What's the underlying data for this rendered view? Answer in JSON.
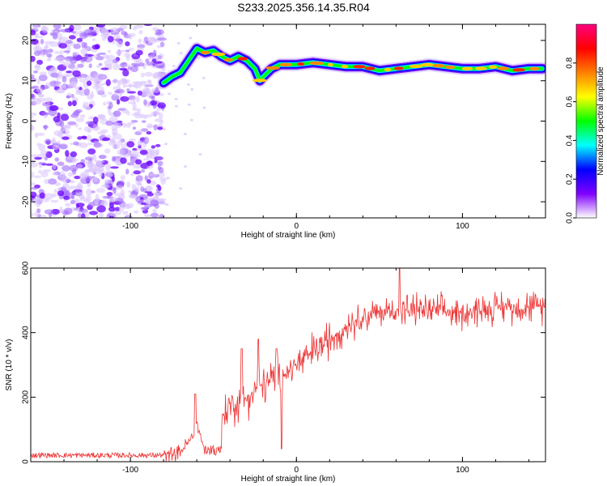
{
  "title": "S233.2025.356.14.35.R04",
  "chart_data": [
    {
      "type": "heatmap",
      "name": "spectrogram",
      "xlabel": "Height of straight line (km)",
      "ylabel": "Frequency (Hz)",
      "xlim": [
        -160,
        150
      ],
      "ylim": [
        -24,
        24
      ],
      "xticks": [
        -100,
        0,
        100
      ],
      "yticks": [
        -20,
        -10,
        0,
        10,
        20
      ],
      "noise_region_x": [
        -160,
        -80
      ],
      "ridge": {
        "x": [
          -80,
          -75,
          -70,
          -65,
          -60,
          -55,
          -50,
          -45,
          -40,
          -35,
          -30,
          -25,
          -22,
          -20,
          -15,
          -10,
          -5,
          0,
          10,
          20,
          30,
          40,
          50,
          60,
          70,
          80,
          90,
          100,
          110,
          120,
          130,
          140,
          148
        ],
        "y": [
          9.5,
          11,
          12,
          15,
          18,
          17,
          17.5,
          16,
          15,
          16,
          15,
          13,
          10,
          11,
          13,
          14,
          14,
          14,
          14.5,
          14,
          13.5,
          13.5,
          12.5,
          13,
          13.5,
          14,
          13.5,
          13,
          13,
          13.5,
          12.5,
          13,
          13
        ]
      },
      "colorbar": {
        "label": "Normalized spectral amplitude",
        "range": [
          0.0,
          1.0
        ],
        "ticks": [
          "0.0",
          "0.2",
          "0.4",
          "0.6",
          "0.8"
        ],
        "colors": [
          "#ffffff",
          "#7f00ff",
          "#0000ff",
          "#00ffff",
          "#00ff00",
          "#ffff00",
          "#ff8000",
          "#ff0000",
          "#ff0080"
        ]
      }
    },
    {
      "type": "line",
      "name": "snr",
      "xlabel": "Height of straight line (km)",
      "ylabel": "SNR (10 * v/v)",
      "xlim": [
        -160,
        150
      ],
      "ylim": [
        0,
        600
      ],
      "xticks": [
        -100,
        0,
        100
      ],
      "yticks": [
        0,
        200,
        400,
        600
      ],
      "color": "#ee3333",
      "trend": {
        "x": [
          -160,
          -80,
          -70,
          -62,
          -60,
          -55,
          -50,
          -45,
          -40,
          -30,
          -20,
          -10,
          0,
          10,
          20,
          30,
          40,
          60,
          80,
          100,
          120,
          150
        ],
        "y": [
          20,
          20,
          30,
          80,
          120,
          30,
          25,
          140,
          170,
          200,
          240,
          260,
          300,
          340,
          380,
          420,
          450,
          470,
          470,
          460,
          480,
          480
        ]
      },
      "spikes": [
        {
          "x": -61,
          "y": 210
        },
        {
          "x": -33,
          "y": 350
        },
        {
          "x": -23,
          "y": 380
        },
        {
          "x": -12,
          "y": 350
        },
        {
          "x": -9,
          "y": 40
        },
        {
          "x": 62,
          "y": 600
        }
      ]
    }
  ]
}
